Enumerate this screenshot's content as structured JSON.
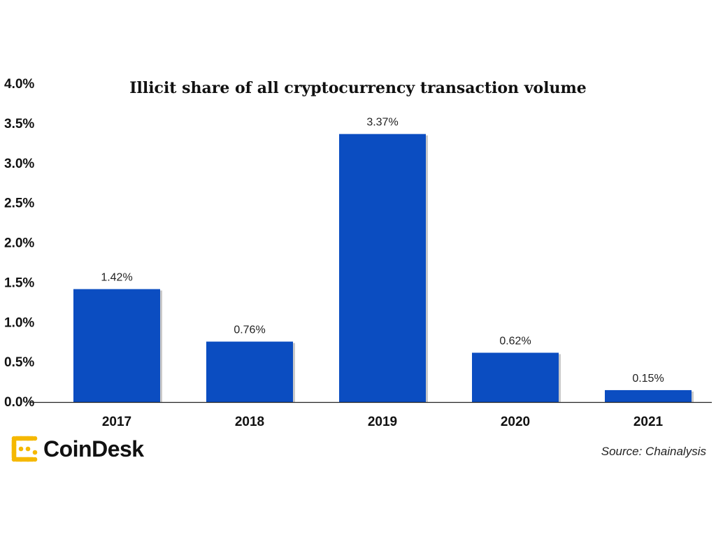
{
  "chart_data": {
    "type": "bar",
    "title": "Illicit share of all cryptocurrency transaction volume",
    "categories": [
      "2017",
      "2018",
      "2019",
      "2020",
      "2021"
    ],
    "values": [
      1.42,
      0.76,
      3.37,
      0.62,
      0.15
    ],
    "data_labels": [
      "1.42%",
      "0.76%",
      "3.37%",
      "0.62%",
      "0.15%"
    ],
    "y_ticks": [
      "0.0%",
      "0.5%",
      "1.0%",
      "1.5%",
      "2.0%",
      "2.5%",
      "3.0%",
      "3.5%",
      "4.0%"
    ],
    "ylim": [
      0,
      4.0
    ],
    "grid": false,
    "bar_color": "#0b4dc1"
  },
  "footer": {
    "brand": "CoinDesk",
    "source": "Source: Chainalysis"
  },
  "colors": {
    "brand_logo": "#f5b800",
    "text": "#111111"
  }
}
